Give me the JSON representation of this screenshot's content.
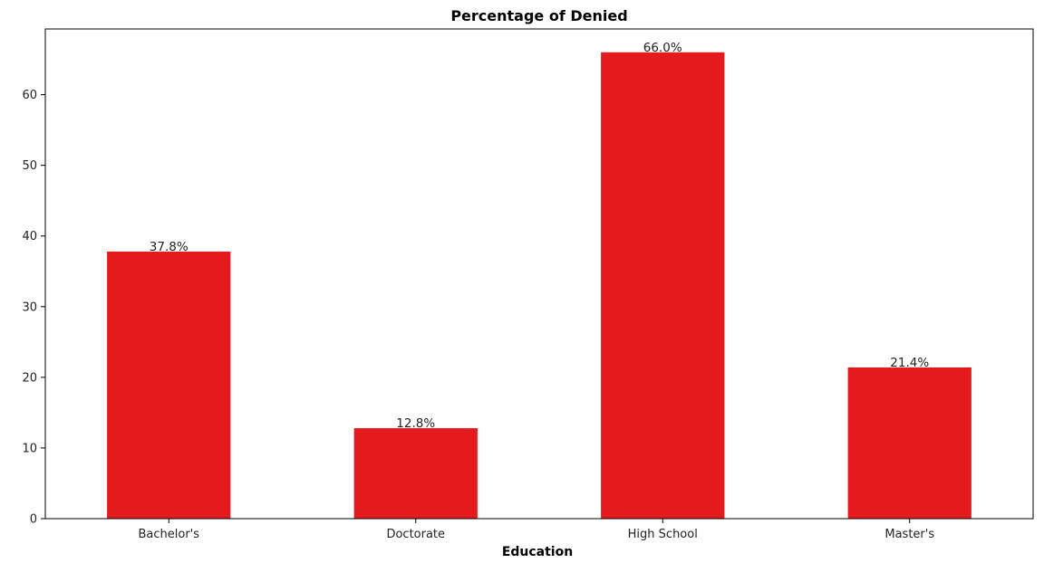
{
  "chart_data": {
    "type": "bar",
    "title": "Percentage of Denied",
    "xlabel": "Education",
    "ylabel": "",
    "categories": [
      "Bachelor's",
      "Doctorate",
      "High School",
      "Master's"
    ],
    "values": [
      37.8,
      12.8,
      66.0,
      21.4
    ],
    "data_labels": [
      "37.8%",
      "12.8%",
      "66.0%",
      "21.4%"
    ],
    "ylim": [
      0,
      69.3
    ],
    "yticks": [
      0,
      10,
      20,
      30,
      40,
      50,
      60
    ],
    "bar_color": "#e41a1c",
    "grid": false,
    "legend": "none"
  }
}
